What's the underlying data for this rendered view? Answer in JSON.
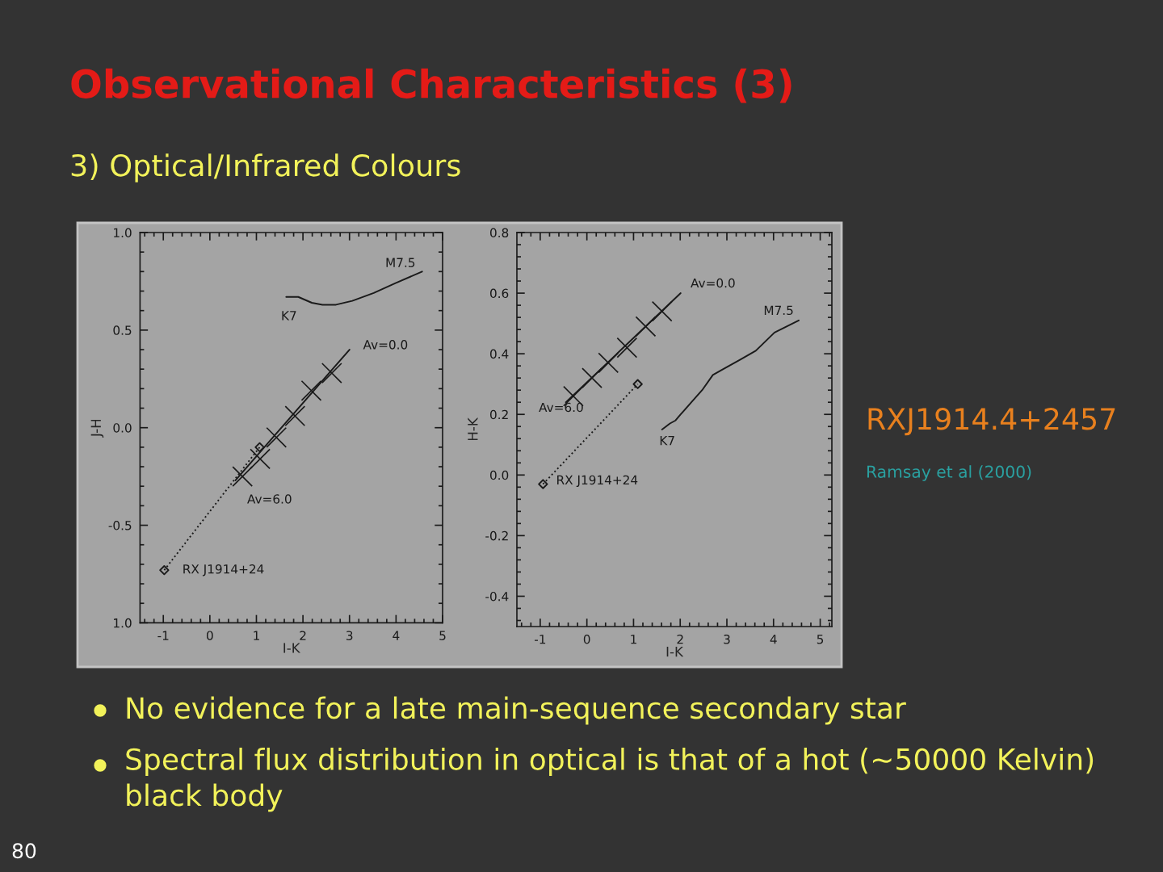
{
  "chart_data": [
    {
      "type": "line",
      "title": "Observational Characteristics (3)",
      "subtitle": "3) Optical/Infrared Colours",
      "xlabel": "I-K",
      "ylabel": "J-H",
      "xlim": [
        -1.5,
        5
      ],
      "ylim": [
        -1.0,
        1.0
      ],
      "xticks": [
        -1,
        0,
        1,
        2,
        3,
        4,
        5
      ],
      "yticks": [
        {
          "value": -1.0,
          "label": "1.0"
        },
        -0.5,
        {
          "value": 0,
          "label": "0.0"
        },
        0.5,
        {
          "value": 1,
          "label": "1.0"
        }
      ],
      "series": [
        {
          "color": "#1a1a1a",
          "x": [
            1.64,
            1.9,
            2.19,
            2.42,
            2.71,
            3.06,
            3.52,
            3.98,
            4.56
          ],
          "values": [
            0.67,
            0.67,
            0.64,
            0.63,
            0.63,
            0.65,
            0.69,
            0.74,
            0.8
          ]
        },
        {
          "color": "#1a1a1a",
          "x": [
            3.0,
            0.55
          ],
          "values": [
            0.4,
            -0.27
          ]
        },
        {
          "type": "scatter",
          "marker": "cross",
          "color": "#1a1a1a",
          "x": [
            2.62,
            2.18,
            1.83,
            1.43,
            1.08,
            0.7
          ],
          "values": [
            0.28,
            0.19,
            0.06,
            -0.05,
            -0.16,
            -0.25
          ]
        },
        {
          "line_style": "dotted",
          "color": "#1a1a1a",
          "x": [
            -0.98,
            1.07
          ],
          "values": [
            -0.73,
            -0.1
          ]
        },
        {
          "type": "scatter",
          "marker": "diamond",
          "color": "#1a1a1a",
          "x": [
            -0.98,
            1.07
          ],
          "values": [
            -0.73,
            -0.1
          ]
        }
      ],
      "annotations": [
        {
          "text": "M7.5",
          "x": 4.56,
          "y": 0.8
        },
        {
          "text": "K7",
          "x": 1.64,
          "y": 0.67
        },
        {
          "text": "Av=0.0",
          "x": 3.0,
          "y": 0.4
        },
        {
          "text": "Av=6.0",
          "x": 0.55,
          "y": -0.27
        },
        {
          "text": "RX J1914+24",
          "x": -0.98,
          "y": -0.73
        },
        "RXJ1914.4+2457",
        "Ramsay et al (2000)",
        "No evidence for a late main-sequence secondary star",
        "Spectral flux distribution in optical is that of a hot (~50000 Kelvin) black body",
        "80"
      ]
    },
    {
      "type": "line",
      "xlabel": "I-K",
      "ylabel": "H-K",
      "xlim": [
        -1.5,
        5.25
      ],
      "ylim": [
        -0.5,
        0.8
      ],
      "xticks": [
        -1,
        0,
        1,
        2,
        3,
        4,
        5
      ],
      "yticks": [
        -0.4,
        -0.2,
        {
          "value": 0,
          "label": "0.0"
        },
        0.2,
        0.4,
        0.6,
        0.8
      ],
      "series": [
        {
          "color": "#1a1a1a",
          "x": [
            1.61,
            1.78,
            1.9,
            2.01,
            2.24,
            2.47,
            2.7,
            2.93,
            3.28,
            3.62,
            4.02,
            4.54
          ],
          "values": [
            0.15,
            0.17,
            0.18,
            0.2,
            0.24,
            0.28,
            0.33,
            0.35,
            0.38,
            0.41,
            0.47,
            0.51
          ]
        },
        {
          "color": "#1a1a1a",
          "x": [
            2.01,
            -0.45
          ],
          "values": [
            0.6,
            0.24
          ]
        },
        {
          "type": "scatter",
          "marker": "cross",
          "color": "#1a1a1a",
          "x": [
            1.61,
            1.26,
            0.86,
            0.46,
            0.11,
            -0.29
          ],
          "values": [
            0.54,
            0.49,
            0.42,
            0.37,
            0.32,
            0.26
          ]
        },
        {
          "line_style": "dotted",
          "color": "#1a1a1a",
          "x": [
            -0.94,
            1.09
          ],
          "values": [
            -0.03,
            0.3
          ]
        },
        {
          "type": "scatter",
          "marker": "diamond",
          "color": "#1a1a1a",
          "x": [
            -0.94,
            1.09
          ],
          "values": [
            -0.03,
            0.3
          ]
        }
      ],
      "annotations": [
        {
          "text": "Av=0.0",
          "x": 2.01,
          "y": 0.6
        },
        {
          "text": "M7.5",
          "x": 4.54,
          "y": 0.51
        },
        {
          "text": "K7",
          "x": 1.61,
          "y": 0.15
        },
        {
          "text": "Av=6.0",
          "x": -0.45,
          "y": 0.24
        },
        {
          "text": "RX J1914+24",
          "x": -0.94,
          "y": -0.03
        }
      ]
    }
  ]
}
